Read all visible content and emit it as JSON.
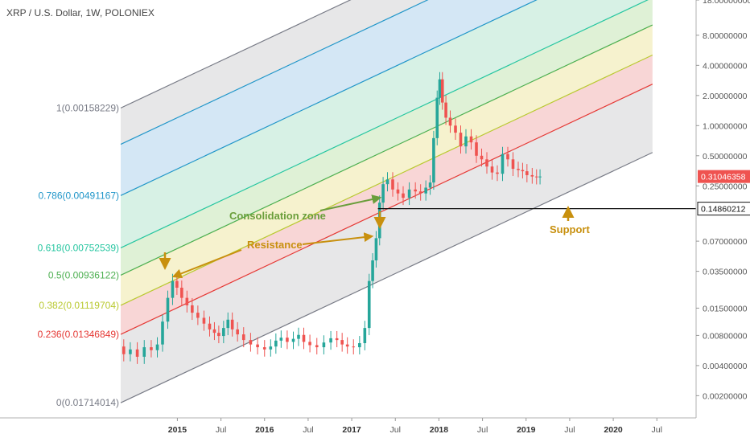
{
  "chart_data": {
    "type": "candlestick",
    "title": "XRP / U.S. Dollar, 1W, POLONIEX",
    "y_scale": "log",
    "ylim": [
      0.0012,
      18
    ],
    "xlim": [
      2014.35,
      2020.95
    ],
    "y_ticks": [
      {
        "label": "18.00000000",
        "value": 18
      },
      {
        "label": "8.00000000",
        "value": 8
      },
      {
        "label": "4.00000000",
        "value": 4
      },
      {
        "label": "2.00000000",
        "value": 2
      },
      {
        "label": "1.00000000",
        "value": 1
      },
      {
        "label": "0.50000000",
        "value": 0.5
      },
      {
        "label": "0.25000000",
        "value": 0.25
      },
      {
        "label": "0.07000000",
        "value": 0.07
      },
      {
        "label": "0.03500000",
        "value": 0.035
      },
      {
        "label": "0.01500000",
        "value": 0.015
      },
      {
        "label": "0.00800000",
        "value": 0.008
      },
      {
        "label": "0.00400000",
        "value": 0.004
      },
      {
        "label": "0.00200000",
        "value": 0.002
      }
    ],
    "x_ticks": [
      {
        "label": "2015",
        "value": 2015.0,
        "year": true
      },
      {
        "label": "Jul",
        "value": 2015.5,
        "year": false
      },
      {
        "label": "2016",
        "value": 2016.0,
        "year": true
      },
      {
        "label": "Jul",
        "value": 2016.5,
        "year": false
      },
      {
        "label": "2017",
        "value": 2017.0,
        "year": true
      },
      {
        "label": "Jul",
        "value": 2017.5,
        "year": false
      },
      {
        "label": "2018",
        "value": 2018.0,
        "year": true
      },
      {
        "label": "Jul",
        "value": 2018.5,
        "year": false
      },
      {
        "label": "2019",
        "value": 2019.0,
        "year": true
      },
      {
        "label": "Jul",
        "value": 2019.5,
        "year": false
      },
      {
        "label": "2020",
        "value": 2020.0,
        "year": true
      },
      {
        "label": "Jul",
        "value": 2020.5,
        "year": false
      }
    ],
    "fib_channel": {
      "start_x": 2014.35,
      "end_x": 2020.45,
      "slope_decades_per_year": 0.41,
      "levels": [
        {
          "label": "1(0.00158229)",
          "base": 1.5,
          "color": "#787b86",
          "fill": "#e8e8ea"
        },
        {
          "label": "",
          "base": 0.65,
          "color": "#2196c9",
          "fill": "#cfe6f6"
        },
        {
          "label": "0.786(0.00491167)",
          "base": 0.2,
          "color": "#2196c9",
          "fill": "#cfe6f6"
        },
        {
          "label": "0.618(0.00752539)",
          "base": 0.06,
          "color": "#26c6a0",
          "fill": "#d5f2e5"
        },
        {
          "label": "0.5(0.00936122)",
          "base": 0.032,
          "color": "#4caf50",
          "fill": "#dff2d6"
        },
        {
          "label": "0.382(0.01119704)",
          "base": 0.016,
          "color": "#b9c930",
          "fill": "#f6f3cd"
        },
        {
          "label": "0.236(0.01346849)",
          "base": 0.0082,
          "color": "#e53935",
          "fill": "#f8d2d2"
        },
        {
          "label": "0(0.01714014)",
          "base": 0.0017,
          "color": "#787b86",
          "fill": "#e8e8ea"
        }
      ]
    },
    "series": [
      {
        "name": "XRP",
        "points": [
          [
            2014.35,
            0.0062
          ],
          [
            2014.42,
            0.0052
          ],
          [
            2014.5,
            0.0058
          ],
          [
            2014.58,
            0.0049
          ],
          [
            2014.66,
            0.0061
          ],
          [
            2014.74,
            0.0057
          ],
          [
            2014.8,
            0.0065
          ],
          [
            2014.86,
            0.011
          ],
          [
            2014.92,
            0.019
          ],
          [
            2014.97,
            0.028
          ],
          [
            2015.02,
            0.024
          ],
          [
            2015.08,
            0.019
          ],
          [
            2015.14,
            0.016
          ],
          [
            2015.2,
            0.0135
          ],
          [
            2015.27,
            0.012
          ],
          [
            2015.34,
            0.0105
          ],
          [
            2015.4,
            0.0092
          ],
          [
            2015.45,
            0.0085
          ],
          [
            2015.5,
            0.0079
          ],
          [
            2015.56,
            0.0095
          ],
          [
            2015.6,
            0.0115
          ],
          [
            2015.66,
            0.0092
          ],
          [
            2015.72,
            0.0082
          ],
          [
            2015.8,
            0.0072
          ],
          [
            2015.88,
            0.0065
          ],
          [
            2015.96,
            0.0061
          ],
          [
            2016.04,
            0.0058
          ],
          [
            2016.1,
            0.0062
          ],
          [
            2016.16,
            0.0071
          ],
          [
            2016.22,
            0.0076
          ],
          [
            2016.3,
            0.0069
          ],
          [
            2016.36,
            0.0074
          ],
          [
            2016.42,
            0.0081
          ],
          [
            2016.48,
            0.0069
          ],
          [
            2016.56,
            0.0064
          ],
          [
            2016.64,
            0.0061
          ],
          [
            2016.72,
            0.0068
          ],
          [
            2016.8,
            0.0075
          ],
          [
            2016.86,
            0.0072
          ],
          [
            2016.92,
            0.0065
          ],
          [
            2016.98,
            0.0062
          ],
          [
            2017.06,
            0.0061
          ],
          [
            2017.12,
            0.0067
          ],
          [
            2017.18,
            0.0095
          ],
          [
            2017.22,
            0.028
          ],
          [
            2017.26,
            0.045
          ],
          [
            2017.3,
            0.075
          ],
          [
            2017.34,
            0.17
          ],
          [
            2017.38,
            0.26
          ],
          [
            2017.44,
            0.29
          ],
          [
            2017.5,
            0.23
          ],
          [
            2017.56,
            0.21
          ],
          [
            2017.62,
            0.19
          ],
          [
            2017.7,
            0.23
          ],
          [
            2017.76,
            0.22
          ],
          [
            2017.82,
            0.21
          ],
          [
            2017.88,
            0.24
          ],
          [
            2017.92,
            0.27
          ],
          [
            2017.96,
            0.75
          ],
          [
            2018.0,
            1.9
          ],
          [
            2018.02,
            2.9
          ],
          [
            2018.06,
            1.7
          ],
          [
            2018.1,
            1.2
          ],
          [
            2018.16,
            1.0
          ],
          [
            2018.22,
            0.85
          ],
          [
            2018.28,
            0.62
          ],
          [
            2018.34,
            0.78
          ],
          [
            2018.4,
            0.68
          ],
          [
            2018.46,
            0.5
          ],
          [
            2018.52,
            0.46
          ],
          [
            2018.58,
            0.39
          ],
          [
            2018.64,
            0.34
          ],
          [
            2018.7,
            0.33
          ],
          [
            2018.76,
            0.52
          ],
          [
            2018.82,
            0.46
          ],
          [
            2018.88,
            0.37
          ],
          [
            2018.94,
            0.36
          ],
          [
            2018.98,
            0.35
          ],
          [
            2019.04,
            0.32
          ],
          [
            2019.1,
            0.31
          ],
          [
            2019.14,
            0.305
          ],
          [
            2019.18,
            0.31
          ]
        ]
      }
    ],
    "last_price_label": "0.31046358",
    "horizontal_level": {
      "value": 0.148,
      "label": "0.14860212",
      "from_x": 2017.3
    },
    "annotations": [
      {
        "text": "Consolidation zone",
        "color": "#6a9e3b"
      },
      {
        "text": "Resistance",
        "color": "#c8900e"
      },
      {
        "text": "Support",
        "color": "#c8900e"
      }
    ],
    "grid": false,
    "legend": "none"
  }
}
